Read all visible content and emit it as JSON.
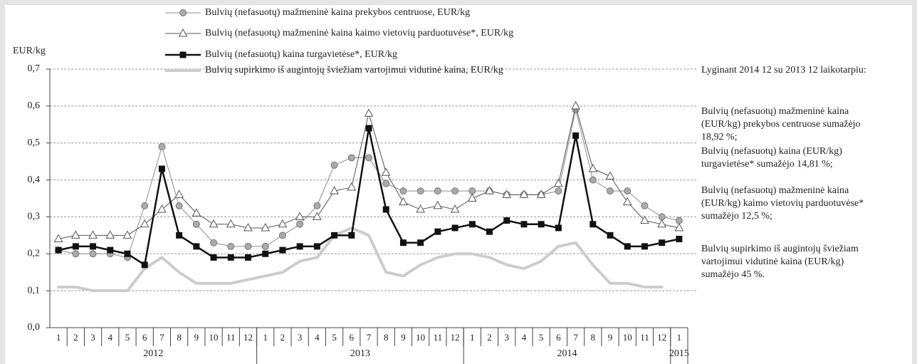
{
  "chart_data": {
    "type": "line",
    "y_axis_label": "EUR/kg",
    "categories": [
      "1",
      "2",
      "3",
      "4",
      "5",
      "6",
      "7",
      "8",
      "9",
      "10",
      "11",
      "12",
      "1",
      "2",
      "3",
      "4",
      "5",
      "6",
      "7",
      "8",
      "9",
      "10",
      "11",
      "12",
      "1",
      "2",
      "3",
      "4",
      "5",
      "6",
      "7",
      "8",
      "9",
      "10",
      "11",
      "12",
      "1"
    ],
    "years": [
      {
        "label": "2012",
        "months": 12
      },
      {
        "label": "2013",
        "months": 12
      },
      {
        "label": "2014",
        "months": 12
      },
      {
        "label": "2015",
        "months": 1
      }
    ],
    "ylim": [
      0,
      0.7
    ],
    "yticks": [
      {
        "value": 0,
        "label": "0,0"
      },
      {
        "value": 0.1,
        "label": "0,1"
      },
      {
        "value": 0.2,
        "label": "0,2"
      },
      {
        "value": 0.3,
        "label": "0,3"
      },
      {
        "value": 0.4,
        "label": "0,4"
      },
      {
        "value": 0.5,
        "label": "0,5"
      },
      {
        "value": 0.6,
        "label": "0,6"
      },
      {
        "value": 0.7,
        "label": "0,7"
      }
    ],
    "grid": true,
    "series": [
      {
        "name": "Bulvių (nefasuotų) mažmeninė kaina prekybos centruose, EUR/kg",
        "color": "#8c8c8c",
        "marker": "circle",
        "values": [
          0.21,
          0.2,
          0.2,
          0.2,
          0.19,
          0.33,
          0.49,
          0.33,
          0.28,
          0.23,
          0.22,
          0.22,
          0.22,
          0.25,
          0.28,
          0.33,
          0.44,
          0.46,
          0.46,
          0.39,
          0.37,
          0.37,
          0.37,
          0.37,
          0.37,
          0.37,
          0.36,
          0.36,
          0.36,
          0.37,
          0.59,
          0.4,
          0.37,
          0.37,
          0.33,
          0.3,
          0.29
        ]
      },
      {
        "name": "Bulvių (nefasuotų) mažmeninė kaina kaimo vietovių parduotuvėse*, EUR/kg",
        "color": "#555555",
        "marker": "triangle",
        "values": [
          0.24,
          0.25,
          0.25,
          0.25,
          0.25,
          0.28,
          0.32,
          0.36,
          0.31,
          0.28,
          0.28,
          0.27,
          0.27,
          0.28,
          0.3,
          0.3,
          0.37,
          0.38,
          0.58,
          0.42,
          0.34,
          0.32,
          0.33,
          0.32,
          0.35,
          0.37,
          0.36,
          0.36,
          0.36,
          0.39,
          0.6,
          0.43,
          0.41,
          0.34,
          0.29,
          0.28,
          0.27
        ]
      },
      {
        "name": "Bulvių (nefasuotų) kaina turgavietėse*, EUR/kg",
        "color": "#111111",
        "marker": "square",
        "values": [
          0.21,
          0.22,
          0.22,
          0.21,
          0.2,
          0.17,
          0.43,
          0.25,
          0.22,
          0.19,
          0.19,
          0.19,
          0.2,
          0.21,
          0.22,
          0.22,
          0.25,
          0.25,
          0.54,
          0.32,
          0.23,
          0.23,
          0.26,
          0.27,
          0.28,
          0.26,
          0.29,
          0.28,
          0.28,
          0.27,
          0.52,
          0.28,
          0.25,
          0.22,
          0.22,
          0.23,
          0.24
        ]
      },
      {
        "name": "Bulvių supirkimo iš augintojų šviežiam vartojimui vidutinė kaina, EUR/kg",
        "color": "#cccccc",
        "marker": "none",
        "values": [
          0.11,
          0.11,
          0.1,
          0.1,
          0.1,
          0.16,
          0.19,
          0.15,
          0.12,
          0.12,
          0.12,
          0.13,
          0.14,
          0.15,
          0.18,
          0.19,
          0.25,
          0.27,
          0.25,
          0.15,
          0.14,
          0.17,
          0.19,
          0.2,
          0.2,
          0.19,
          0.17,
          0.16,
          0.18,
          0.22,
          0.23,
          0.17,
          0.12,
          0.12,
          0.11,
          0.11,
          null
        ]
      }
    ],
    "annotation_heading": "Lyginant 2014 12 su 2013 12 laikotarpiu:",
    "annotations": [
      [
        "Bulvių (nefasuotų) mažmeninė kaina",
        "(EUR/kg) prekybos centruose  sumažėjo",
        "18,92 %;"
      ],
      [
        "Bulvių (nefasuotų) kaina (EUR/kg)",
        "turgavietėse* sumažėjo 14,81 %;"
      ],
      [
        "Bulvių (nefasuotų) mažmeninė kaina",
        "(EUR/kg) kaimo vietovių parduotuvėse*",
        "sumažėjo 12,5 %;"
      ],
      [
        "Bulvių supirkimo iš augintojų šviežiam",
        "vartojimui vidutinė kaina (EUR/kg)",
        "sumažėjo  45 %."
      ]
    ]
  }
}
